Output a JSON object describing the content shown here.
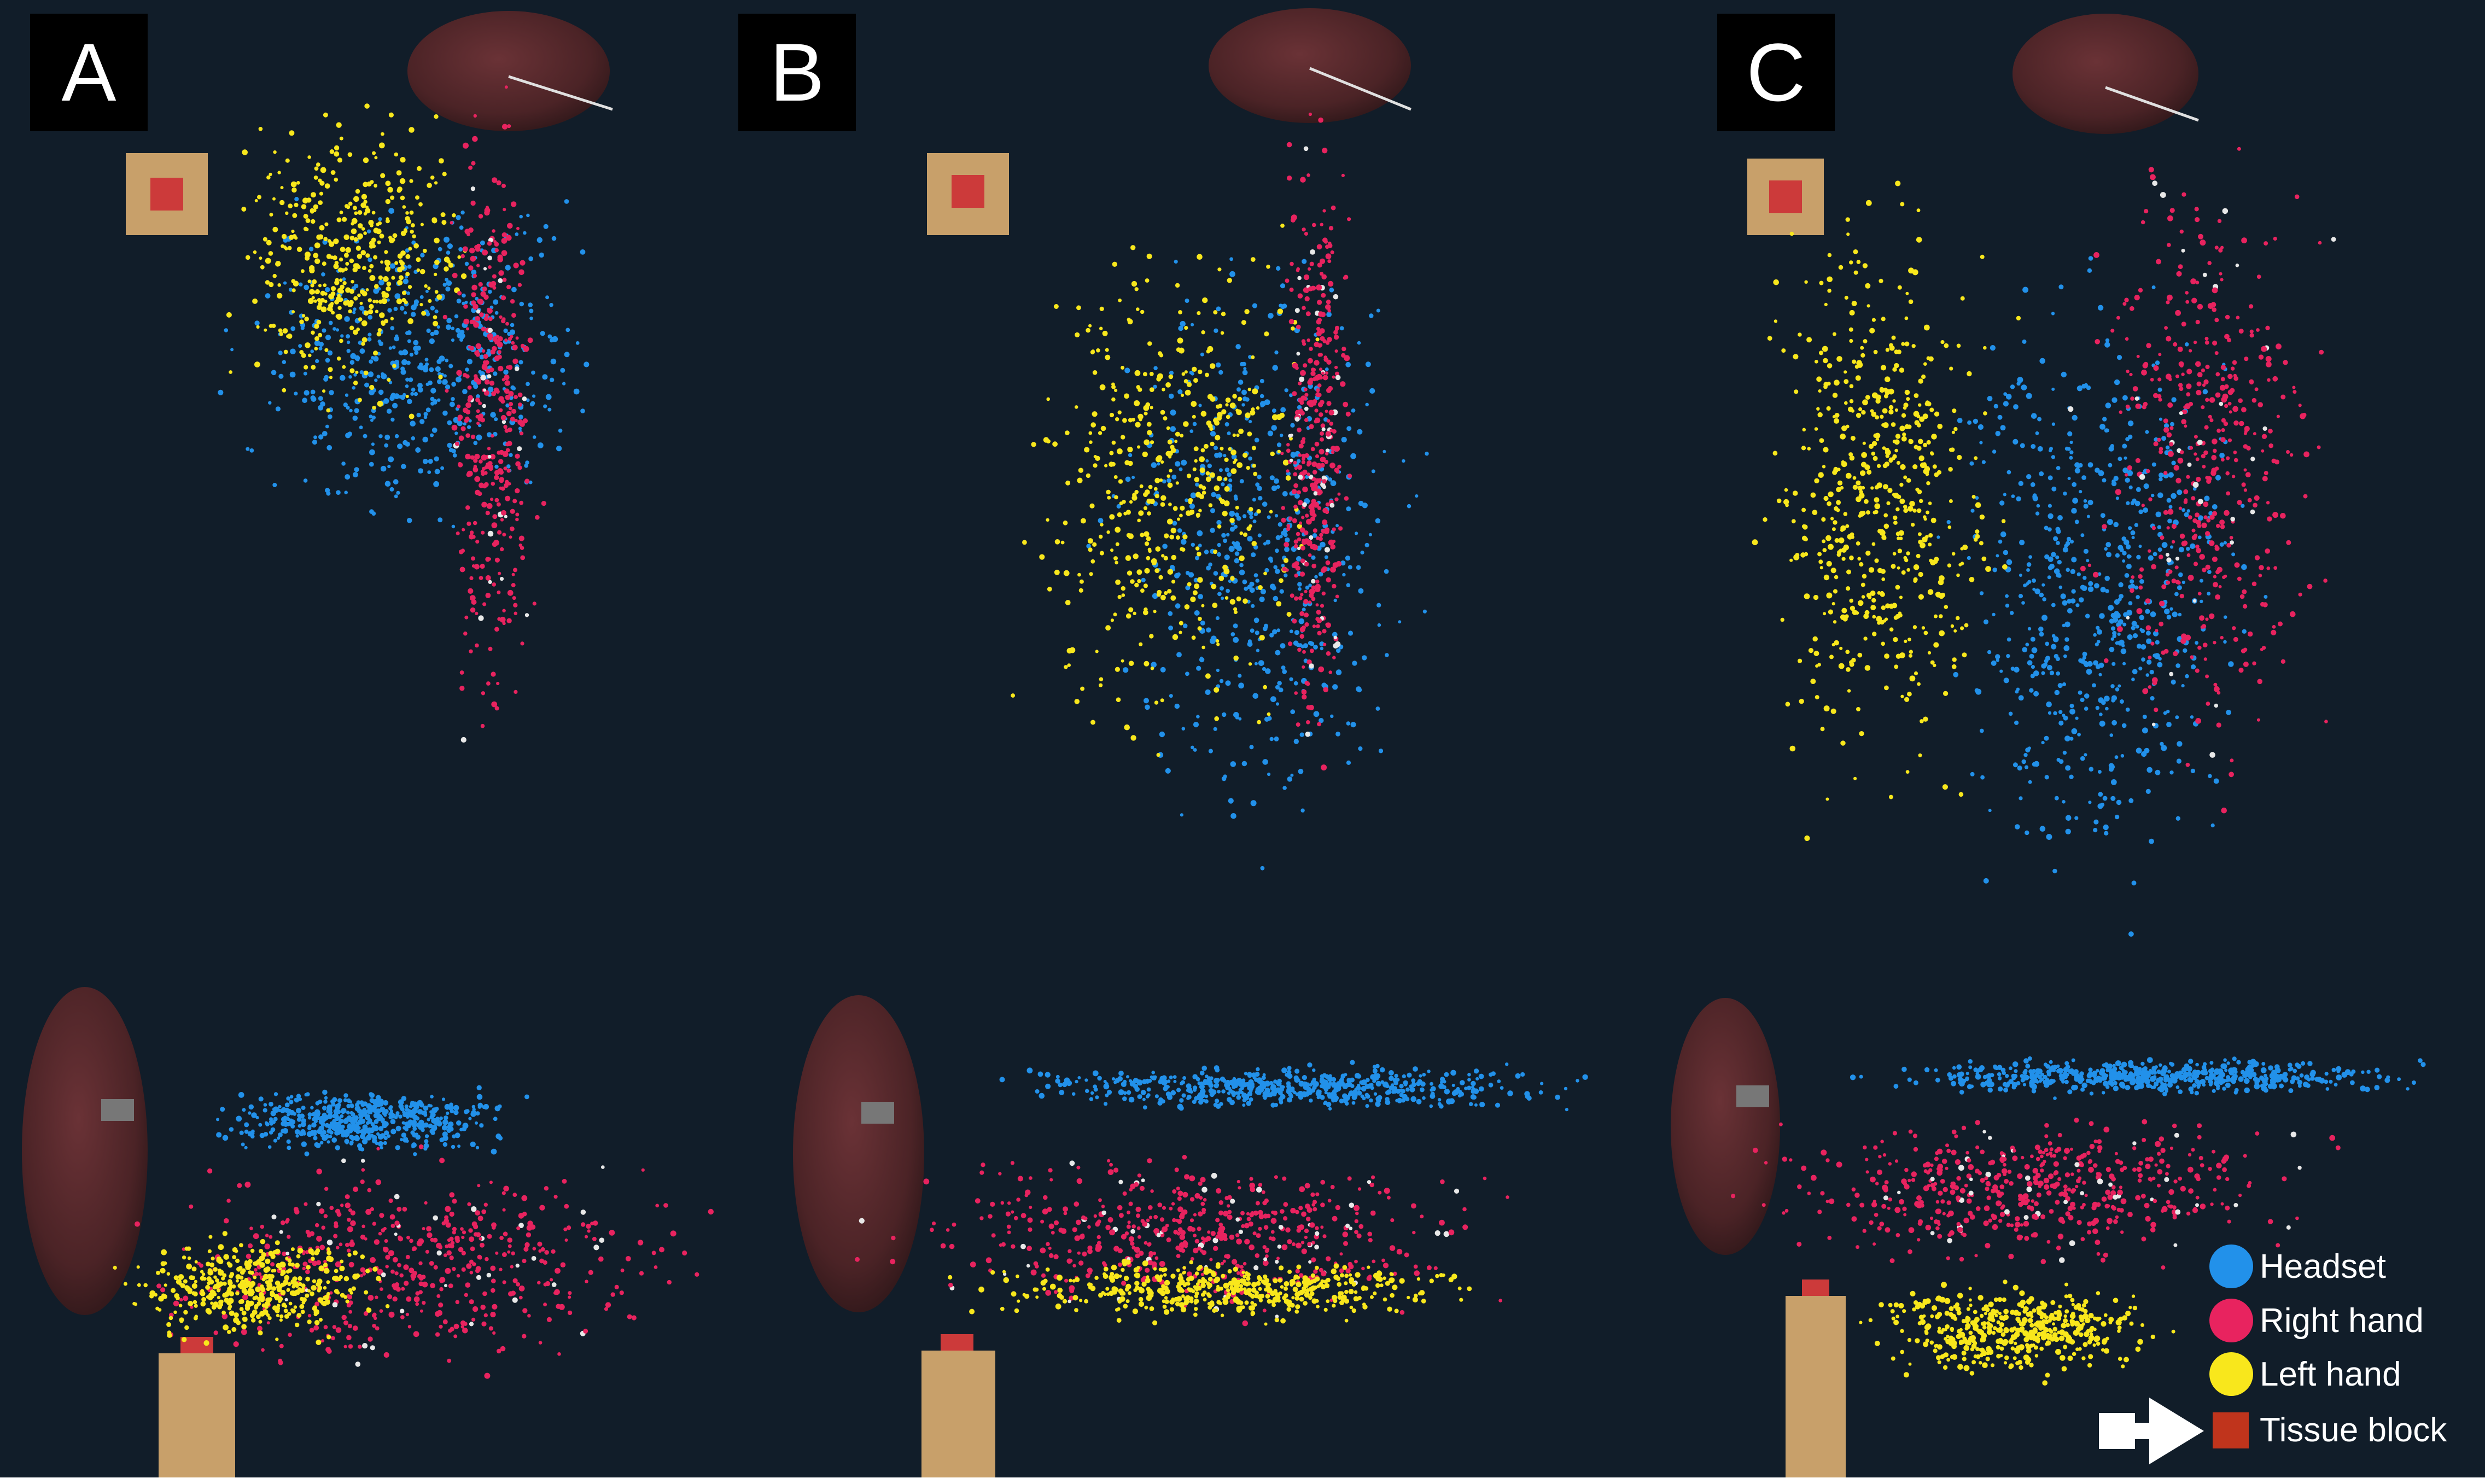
{
  "panels": [
    {
      "id": "A",
      "label": "A"
    },
    {
      "id": "B",
      "label": "B"
    },
    {
      "id": "C",
      "label": "C"
    }
  ],
  "legend": {
    "headset": {
      "label": "Headset",
      "color": "#2291ea"
    },
    "right_hand": {
      "label": "Right hand",
      "color": "#e8235f"
    },
    "left_hand": {
      "label": "Left hand",
      "color": "#f8e71c"
    },
    "tissue_block": {
      "label": "Tissue block",
      "color": "#c0341c"
    }
  },
  "colors": {
    "background": "#111d29",
    "organ": "#4b2326",
    "block": "#c8a06a",
    "marker": "#cc3a3a",
    "near_tissue": "#e8e8e8"
  }
}
